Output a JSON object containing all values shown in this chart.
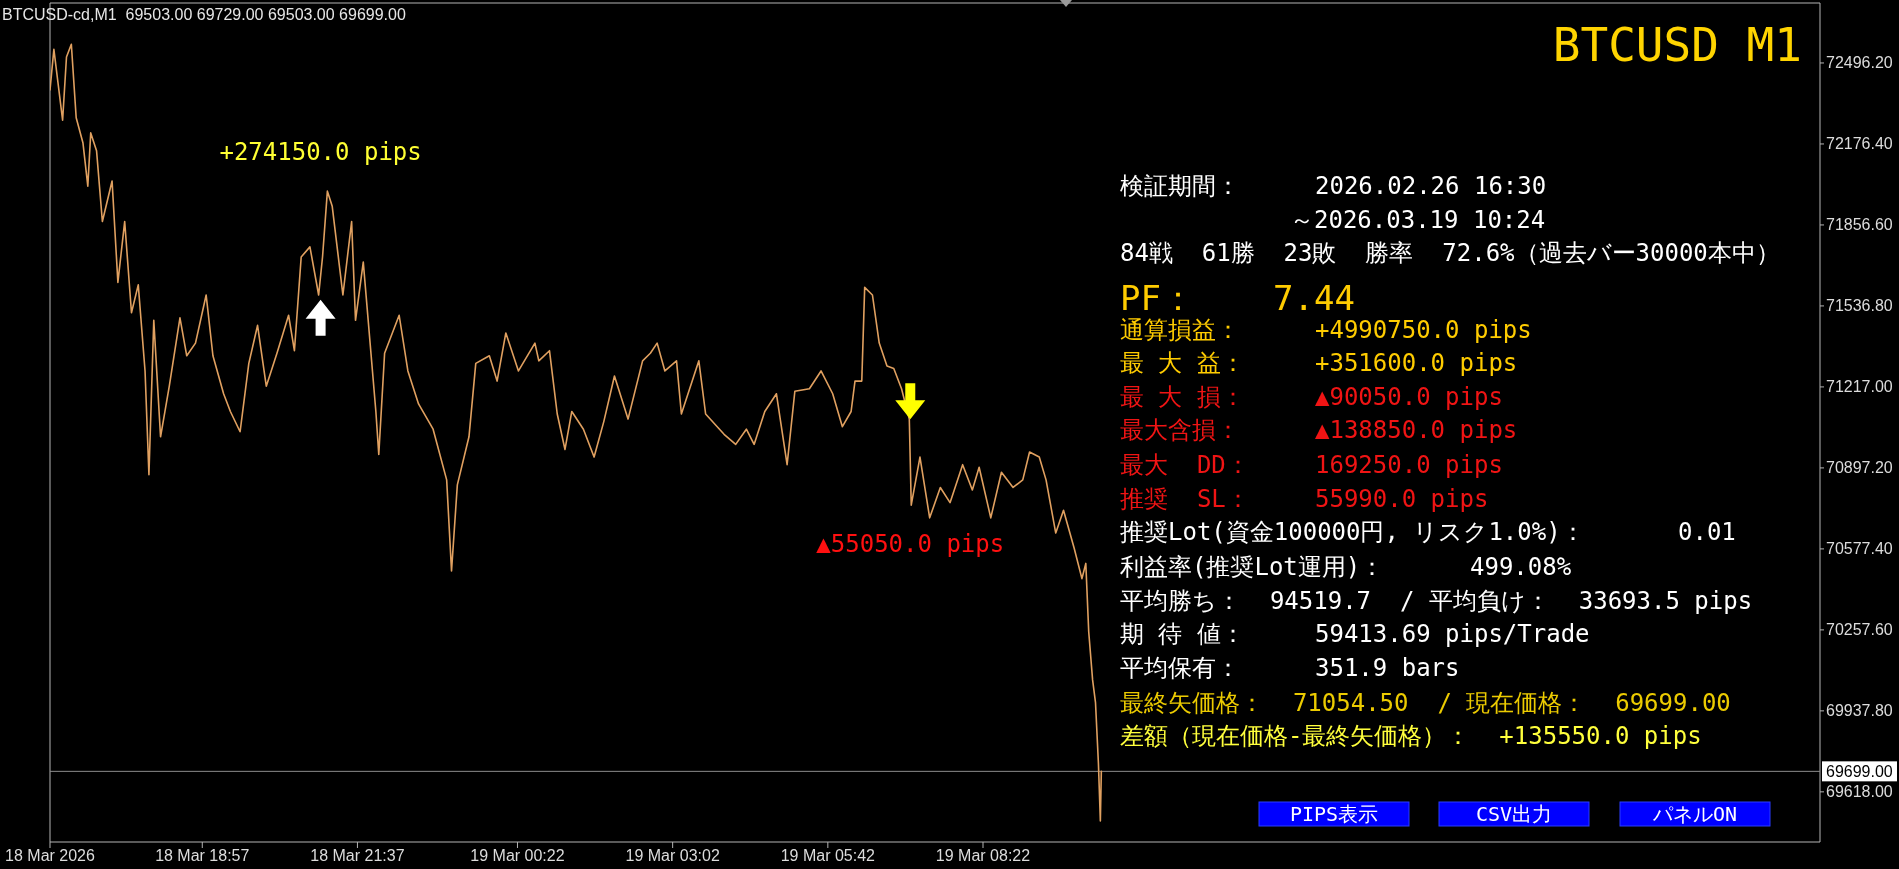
{
  "chart_data": {
    "type": "line",
    "title": "BTCUSD M1",
    "x": [
      "2026-03-18T16:20",
      "2026-03-18T16:24",
      "2026-03-18T16:33",
      "2026-03-18T16:37",
      "2026-03-18T16:42",
      "2026-03-18T16:47",
      "2026-03-18T16:54",
      "2026-03-18T16:59",
      "2026-03-18T17:02",
      "2026-03-18T17:08",
      "2026-03-18T17:14",
      "2026-03-18T17:24",
      "2026-03-18T17:30",
      "2026-03-18T17:37",
      "2026-03-18T17:44",
      "2026-03-18T17:51",
      "2026-03-18T17:58",
      "2026-03-18T18:02",
      "2026-03-18T18:07",
      "2026-03-18T18:14",
      "2026-03-18T18:23",
      "2026-03-18T18:34",
      "2026-03-18T18:41",
      "2026-03-18T18:50",
      "2026-03-18T19:01",
      "2026-03-18T19:08",
      "2026-03-18T19:19",
      "2026-03-18T19:26",
      "2026-03-18T19:36",
      "2026-03-18T19:45",
      "2026-03-18T19:54",
      "2026-03-18T20:03",
      "2026-03-18T20:14",
      "2026-03-18T20:26",
      "2026-03-18T20:32",
      "2026-03-18T20:39",
      "2026-03-18T20:48",
      "2026-03-18T20:57",
      "2026-03-18T21:01",
      "2026-03-18T21:06",
      "2026-03-18T21:11",
      "2026-03-18T21:22",
      "2026-03-18T21:31",
      "2026-03-18T21:35",
      "2026-03-18T21:43",
      "2026-03-18T21:56",
      "2026-03-18T21:59",
      "2026-03-18T22:05",
      "2026-03-18T22:20",
      "2026-03-18T22:29",
      "2026-03-18T22:40",
      "2026-03-18T22:55",
      "2026-03-18T23:09",
      "2026-03-18T23:14",
      "2026-03-18T23:20",
      "2026-03-18T23:32",
      "2026-03-18T23:39",
      "2026-03-18T23:53",
      "2026-03-19T00:01",
      "2026-03-19T00:10",
      "2026-03-19T00:23",
      "2026-03-19T00:40",
      "2026-03-19T00:44",
      "2026-03-19T00:55",
      "2026-03-19T01:03",
      "2026-03-19T01:11",
      "2026-03-19T01:18",
      "2026-03-19T01:30",
      "2026-03-19T01:41",
      "2026-03-19T01:51",
      "2026-03-19T02:02",
      "2026-03-19T02:16",
      "2026-03-19T02:31",
      "2026-03-19T02:39",
      "2026-03-19T02:46",
      "2026-03-19T02:54",
      "2026-03-19T03:06",
      "2026-03-19T03:11",
      "2026-03-19T03:29",
      "2026-03-19T03:36",
      "2026-03-19T03:55",
      "2026-03-19T04:07",
      "2026-03-19T04:18",
      "2026-03-19T04:26",
      "2026-03-19T04:37",
      "2026-03-19T04:49",
      "2026-03-19T05:00",
      "2026-03-19T05:08",
      "2026-03-19T05:23",
      "2026-03-19T05:35",
      "2026-03-19T05:47",
      "2026-03-19T05:57",
      "2026-03-19T06:06",
      "2026-03-19T06:10",
      "2026-03-19T06:17",
      "2026-03-19T06:20",
      "2026-03-19T06:28",
      "2026-03-19T06:35",
      "2026-03-19T06:43",
      "2026-03-19T06:50",
      "2026-03-19T06:58",
      "2026-03-19T07:06",
      "2026-03-19T07:08",
      "2026-03-19T07:17",
      "2026-03-19T07:27",
      "2026-03-19T07:38",
      "2026-03-19T07:48",
      "2026-03-19T08:01",
      "2026-03-19T08:11",
      "2026-03-19T08:18",
      "2026-03-19T08:30",
      "2026-03-19T08:41",
      "2026-03-19T08:53",
      "2026-03-19T09:03",
      "2026-03-19T09:10",
      "2026-03-19T09:20",
      "2026-03-19T09:27",
      "2026-03-19T09:37",
      "2026-03-19T09:45",
      "2026-03-19T09:56",
      "2026-03-19T10:04",
      "2026-03-19T10:08",
      "2026-03-19T10:11",
      "2026-03-19T10:15",
      "2026-03-19T10:18",
      "2026-03-19T10:21",
      "2026-03-19T10:23",
      "2026-03-19T10:24"
    ],
    "series": [
      {
        "color": "#e0a060",
        "values": [
          72390,
          72550,
          72270,
          72520,
          72570,
          72280,
          72180,
          72010,
          72220,
          72150,
          71870,
          72030,
          71630,
          71870,
          71510,
          71620,
          71280,
          70870,
          71480,
          71020,
          71220,
          71490,
          71340,
          71390,
          71580,
          71340,
          71190,
          71120,
          71040,
          71310,
          71460,
          71220,
          71350,
          71500,
          71360,
          71730,
          71770,
          71580,
          71730,
          71990,
          71930,
          71580,
          71870,
          71480,
          71710,
          71120,
          70950,
          71350,
          71500,
          71280,
          71150,
          71050,
          70850,
          70490,
          70830,
          71020,
          71310,
          71340,
          71240,
          71430,
          71280,
          71390,
          71320,
          71360,
          71110,
          70970,
          71120,
          71050,
          70940,
          71080,
          71260,
          71090,
          71320,
          71350,
          71390,
          71280,
          71320,
          71110,
          71320,
          71110,
          71030,
          70990,
          71050,
          70990,
          71120,
          71190,
          70910,
          71200,
          71210,
          71280,
          71190,
          71060,
          71120,
          71240,
          71240,
          71610,
          71580,
          71390,
          71300,
          71290,
          71210,
          71090,
          70750,
          70940,
          70700,
          70820,
          70760,
          70910,
          70810,
          70900,
          70700,
          70880,
          70820,
          70850,
          70960,
          70940,
          70850,
          70640,
          70730,
          70580,
          70460,
          70520,
          70250,
          70060,
          69970,
          69730,
          69503,
          69699
        ]
      },
      {
        "type": "scatter",
        "x": [
          "2026-03-18T20:59"
        ],
        "values": [
          71490
        ],
        "color": "#ffffff",
        "marker": "triangle"
      },
      {
        "type": "scatter",
        "x": [
          "2026-03-19T07:07"
        ],
        "values": [
          71160
        ],
        "color": "#ffff00",
        "marker": "triangle"
      }
    ],
    "xlim": [
      "2026-03-18T16:20",
      "2026-03-19T22:45"
    ],
    "xticks": [
      {
        "value": "2026-03-18T16:20",
        "label": "18 Mar 2026"
      },
      {
        "value": "2026-03-18T18:57",
        "label": "18 Mar 18:57"
      },
      {
        "value": "2026-03-18T21:37",
        "label": "18 Mar 21:37"
      },
      {
        "value": "2026-03-19T00:22",
        "label": "19 Mar 00:22"
      },
      {
        "value": "2026-03-19T03:02",
        "label": "19 Mar 03:02"
      },
      {
        "value": "2026-03-19T05:42",
        "label": "19 Mar 05:42"
      },
      {
        "value": "2026-03-19T08:22",
        "label": "19 Mar 08:22"
      }
    ],
    "ylim": [
      69420,
      72733
    ],
    "yticks": [
      {
        "value": 72496.2,
        "label": "72496.20"
      },
      {
        "value": 72176.4,
        "label": "72176.40"
      },
      {
        "value": 71856.6,
        "label": "71856.60"
      },
      {
        "value": 71536.8,
        "label": "71536.80"
      },
      {
        "value": 71217,
        "label": "71217.00"
      },
      {
        "value": 70897.2,
        "label": "70897.20"
      },
      {
        "value": 70577.4,
        "label": "70577.40"
      },
      {
        "value": 70257.6,
        "label": "70257.60"
      },
      {
        "value": 69937.8,
        "label": "69937.80"
      },
      {
        "value": 69618,
        "label": "69618.00"
      }
    ],
    "ref_lines": [
      {
        "axis": "y",
        "value": 69699,
        "label": "69699.00",
        "color": "#8c8c8c"
      }
    ],
    "annotations": [
      "+274150.0 pips",
      "▲55050.0 pips",
      "BTCUSD-cd,M1  69503.00 69729.00 69503.00 69699.00",
      "検証期間：",
      "2026.02.26 16:30",
      "～2026.03.19 10:24",
      "84戦  61勝  23敗  勝率  72.6%（過去バー30000本中）",
      "PF：",
      "7.44",
      "通算損益：",
      "+4990750.0 pips",
      "最 大 益：",
      "+351600.0 pips",
      "最 大 損：",
      "▲90050.0 pips",
      "最大含損：",
      "▲138850.0 pips",
      "最大  DD：",
      "169250.0 pips",
      "推奨  SL：",
      "55990.0 pips",
      "推奨Lot(資金100000円, リスク1.0%)：",
      "0.01",
      "利益率(推奨Lot運用)：",
      "499.08%",
      "平均勝ち：  94519.7  / 平均負け：  33693.5 pips",
      "期 待 値：",
      "59413.69 pips/Trade",
      "平均保有：",
      "351.9 bars",
      "最終矢価格：  71054.50  / 現在価格：  69699.00",
      "差額（現在価格-最終矢価格）：  +135550.0 pips",
      "PIPS表示",
      "CSV出力",
      "パネルON"
    ]
  }
}
